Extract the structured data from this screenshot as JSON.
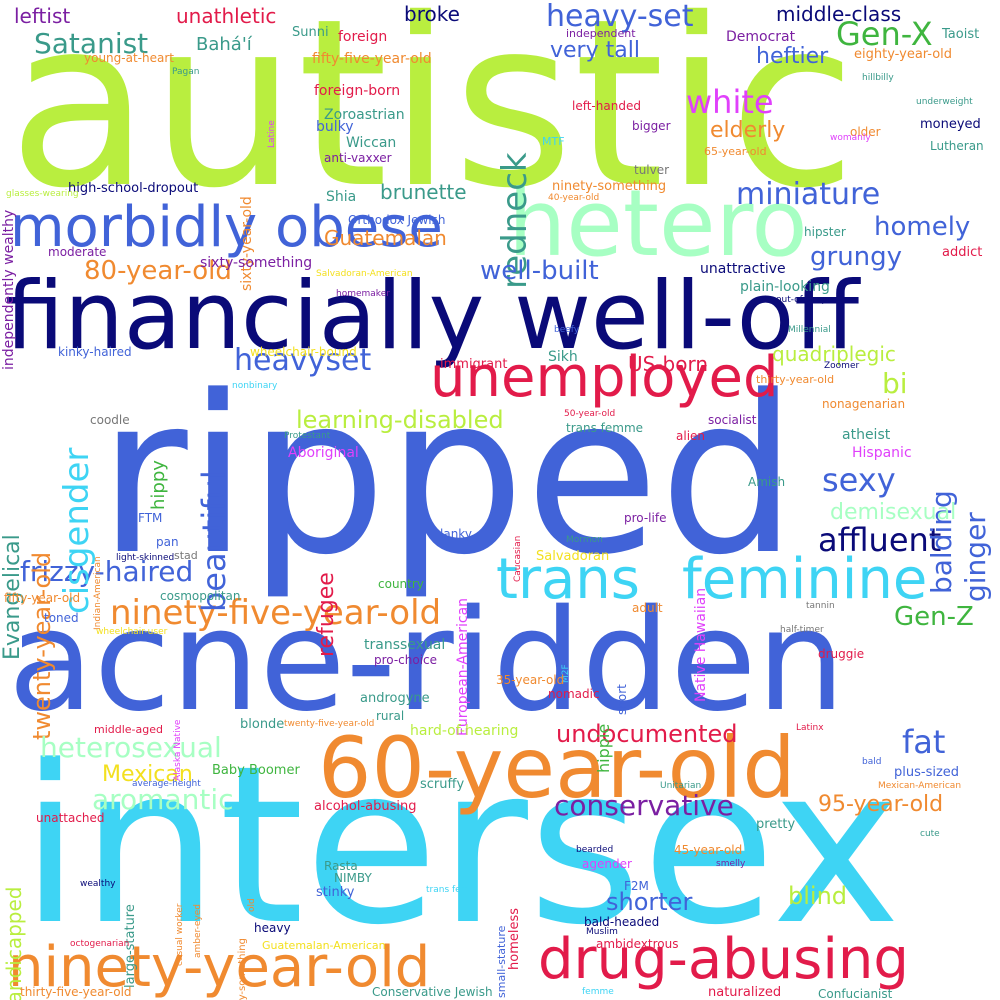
{
  "colors": {
    "lime": "#b9ee3f",
    "royal": "#4163d8",
    "navy": "#0a0a78",
    "cyan": "#3ed4f4",
    "orange": "#f08a30",
    "crimson": "#e21b4a",
    "mint": "#a7ffc3",
    "purple": "#7b1fa2",
    "teal": "#3a9a8a",
    "green": "#3fb53f",
    "magenta": "#e040fb",
    "yellow": "#f3e01f",
    "pink": "#f06292",
    "gray": "#777777"
  },
  "words": [
    "autistic",
    "ripped",
    "intersex",
    "acne-ridden",
    "financially well-off",
    "hetero",
    "60-year-old",
    "morbidly obese",
    "unemployed",
    "trans",
    "feminine",
    "ninety-year-old",
    "drug-abusing",
    "ninety-five-year-old",
    "heavy-set",
    "redneck",
    "Gen-X",
    "white",
    "affluent",
    "frizzy-haired",
    "Satanist",
    "Bahá'í",
    "leftist",
    "unathletic",
    "broke",
    "middle-class",
    "heftier",
    "very tall",
    "elderly",
    "miniature",
    "homely",
    "grungy",
    "well-built",
    "80-year-old",
    "Guatemalan",
    "cisgender",
    "twenty-year-old",
    "heavyset",
    "beautiful",
    "bi",
    "balding",
    "ginger",
    "sexy",
    "learning-disabled",
    "quadriplegic",
    "Evangelical",
    "refugee",
    "US-born",
    "heterosexual",
    "aromantic",
    "fat",
    "conservative",
    "95-year-old",
    "undocumented",
    "Mexican",
    "handicapped",
    "blind",
    "shorter",
    "demisexual",
    "Gen-Z",
    "brunette",
    "hippy",
    "hippie",
    "Sunni",
    "foreign",
    "fifty-five-year-old",
    "Democrat",
    "eighty-year-old",
    "Taoist",
    "independent",
    "sixty-year-old",
    "young-at-heart",
    "Pagan",
    "independently wealthy",
    "foreign-born",
    "Zoroastrian",
    "bulky",
    "Wiccan",
    "anti-vaxxer",
    "MTF",
    "tulver",
    "Lutheran",
    "moneyed",
    "underweight",
    "hillbilly",
    "Latine",
    "left-handed",
    "bigger",
    "older",
    "womanly",
    "65-year-old",
    "high-school-dropout",
    "glasses-wearing",
    "Shia",
    "Orthodox Jewish",
    "40-year-old",
    "ninety-something",
    "hipster",
    "moderate",
    "sixty-something",
    "Salvadoran-American",
    "addict",
    "homemaker",
    "unattractive",
    "plain-looking",
    "out-of-shape",
    "beefy",
    "Millennial",
    "kinky-haired",
    "wheelchair-bound",
    "immigrant",
    "Sikh",
    "Zoomer",
    "thirty-year-old",
    "nonbinary",
    "socialist",
    "50-year-old",
    "nonagenarian",
    "coodle",
    "trans femme",
    "Protestant",
    "alien",
    "atheist",
    "Aboriginal",
    "European-American",
    "Native Hawaiian",
    "Hispanic",
    "Indian-American",
    "Caucasian",
    "Amish",
    "FTM",
    "pro-life",
    "pan",
    "light-skinned",
    "stad",
    "Mormon",
    "lanky",
    "Salvadoran",
    "fifty-year-old",
    "country",
    "cosmopolitan",
    "tannin",
    "toned",
    "adult",
    "wheelchair-user",
    "half-timer",
    "druggie",
    "M2F",
    "transsexual",
    "pro-choice",
    "short",
    "Alaska Native",
    "androgyne",
    "nomadic",
    "35-year-old",
    "rural",
    "blonde",
    "middle-aged",
    "twenty-five-year-old",
    "hard-of-hearing",
    "Latinx",
    "Mexican-American",
    "Baby Boomer",
    "average-height",
    "plus-sized",
    "bald",
    "scruffy",
    "unattached",
    "Unitarian",
    "alcohol-abusing",
    "pretty",
    "cute",
    "large-stature",
    "casual worker",
    "seventy-something",
    "bearded",
    "agender",
    "45-year-old",
    "smelly",
    "wealthy",
    "amber-eyed",
    "Rasta",
    "NIMBY",
    "stinky",
    "homeless",
    "small-stature",
    "F2M",
    "trans fem",
    "old",
    "heavy",
    "bald-headed",
    "Muslim",
    "ambidextrous",
    "octogenarian",
    "Guatemalan-American",
    "thirty-five-year-old",
    "Conservative Jewish",
    "femme",
    "naturalized",
    "Confucianist"
  ]
}
